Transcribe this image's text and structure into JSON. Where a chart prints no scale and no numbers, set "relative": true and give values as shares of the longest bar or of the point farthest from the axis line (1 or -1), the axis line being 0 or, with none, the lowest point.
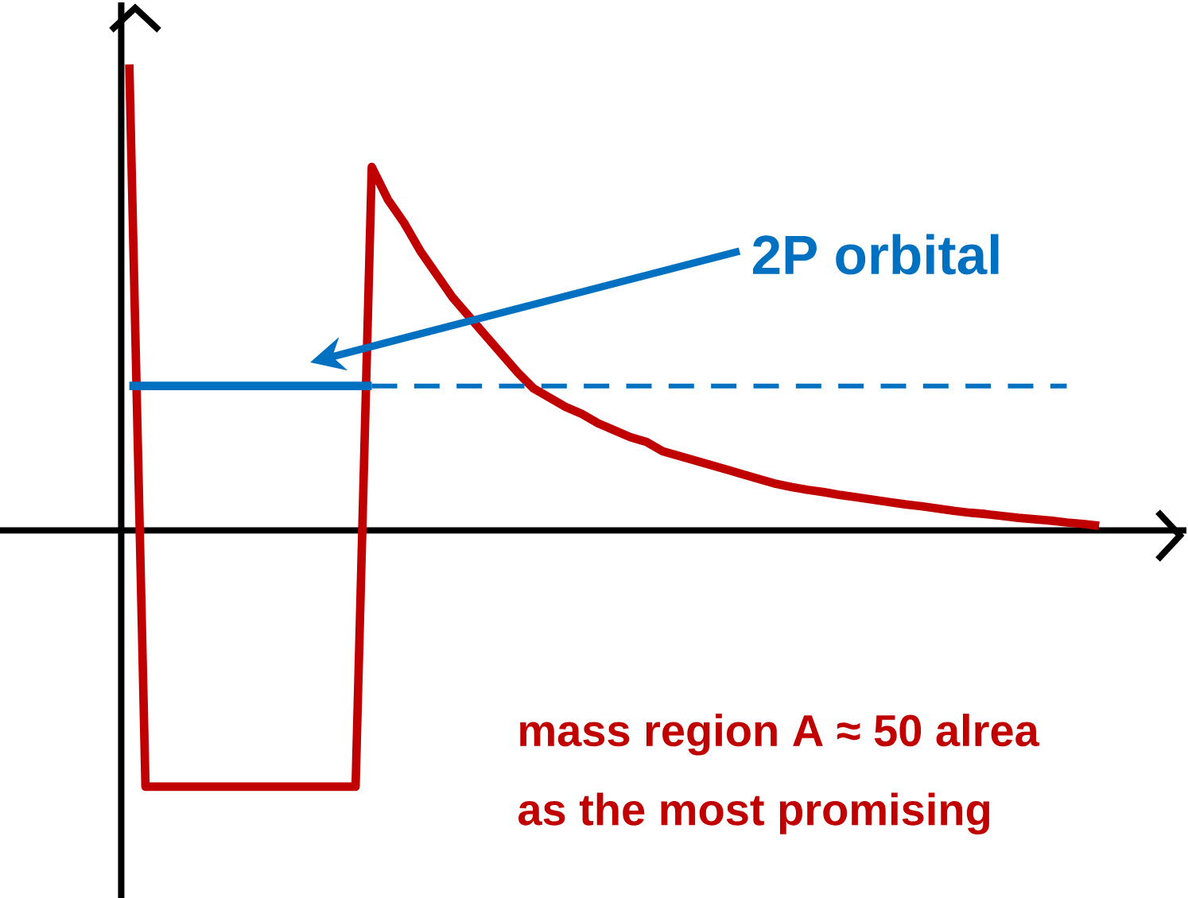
{
  "chart_data": {
    "type": "line",
    "relative": true,
    "categories": [
      null,
      null,
      null,
      null,
      null,
      null,
      null,
      null,
      null,
      null,
      null,
      null,
      null,
      null,
      null,
      null,
      null,
      null,
      null,
      null,
      null,
      null,
      null,
      null,
      null,
      null,
      null,
      null,
      null,
      null,
      null,
      null,
      null,
      null,
      null,
      null,
      null,
      null,
      null,
      null,
      null,
      null,
      null,
      null,
      null,
      null,
      null,
      null,
      null,
      null,
      null,
      null,
      null,
      null,
      null,
      null,
      null,
      null,
      null,
      null,
      null
    ],
    "series": [
      {
        "color": "#c00000",
        "values": [
          1,
          -0.55,
          -0.55,
          -0.55,
          -0.55,
          -0.55,
          -0.55,
          -0.55,
          -0.55,
          -0.55,
          -0.55,
          -0.55,
          -0.55,
          -0.55,
          -0.55,
          0.78,
          0.71,
          0.66,
          0.6,
          0.55,
          0.5,
          0.46,
          0.42,
          0.38,
          0.34,
          0.305,
          0.285,
          0.265,
          0.25,
          0.23,
          0.215,
          0.2,
          0.19,
          0.17,
          0.16,
          0.15,
          0.14,
          0.13,
          0.12,
          0.11,
          0.1,
          0.093,
          0.087,
          0.082,
          0.076,
          0.071,
          0.066,
          0.061,
          0.056,
          0.052,
          0.047,
          0.042,
          0.038,
          0.035,
          0.031,
          0.027,
          0.024,
          0.021,
          0.017,
          0.014,
          0.01
        ]
      },
      {
        "color": "#0070c0",
        "line_style": "solid",
        "values": [
          0.31,
          0.31,
          0.31,
          0.31,
          0.31,
          0.31,
          0.31,
          0.31,
          0.31,
          0.31,
          0.31,
          0.31,
          0.31,
          0.31,
          0.31,
          0.31,
          null,
          null,
          null,
          null,
          null,
          null,
          null,
          null,
          null,
          null,
          null,
          null,
          null,
          null,
          null,
          null,
          null,
          null,
          null,
          null,
          null,
          null,
          null,
          null,
          null,
          null,
          null,
          null,
          null,
          null,
          null,
          null,
          null,
          null,
          null,
          null,
          null,
          null,
          null,
          null,
          null,
          null,
          null,
          null,
          null
        ]
      },
      {
        "color": "#0070c0",
        "line_style": "dashed",
        "values": [
          null,
          null,
          null,
          null,
          null,
          null,
          null,
          null,
          null,
          null,
          null,
          null,
          null,
          null,
          null,
          0.31,
          0.31,
          0.31,
          0.31,
          0.31,
          0.31,
          0.31,
          0.31,
          0.31,
          0.31,
          0.31,
          0.31,
          0.31,
          0.31,
          0.31,
          0.31,
          0.31,
          0.31,
          0.31,
          0.31,
          0.31,
          0.31,
          0.31,
          0.31,
          0.31,
          0.31,
          0.31,
          0.31,
          0.31,
          0.31,
          0.31,
          0.31,
          0.31,
          0.31,
          0.31,
          0.31,
          0.31,
          0.31,
          0.31,
          0.31,
          0.31,
          0.31,
          0.31,
          0.31,
          null,
          null
        ]
      }
    ],
    "annotations": [
      "2P orbital",
      "mass region A ≈ 50 alrea",
      "as the most promising"
    ]
  }
}
